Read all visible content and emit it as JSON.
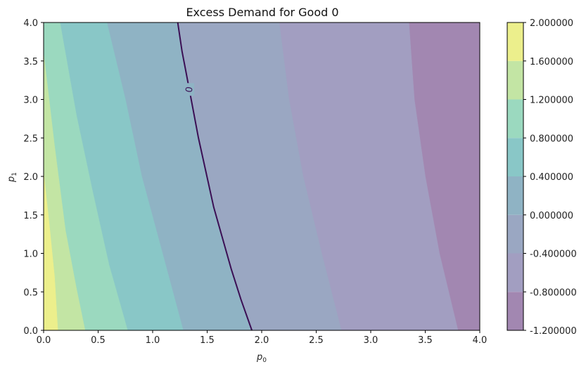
{
  "chart_data": {
    "type": "contour",
    "title": "Excess Demand for Good 0",
    "xlabel": {
      "base": "p",
      "sub": "0"
    },
    "ylabel": {
      "base": "p",
      "sub": "1"
    },
    "xlim": [
      0.0,
      4.0
    ],
    "ylim": [
      0.0,
      4.0
    ],
    "xticks": [
      "0.0",
      "0.5",
      "1.0",
      "1.5",
      "2.0",
      "2.5",
      "3.0",
      "3.5",
      "4.0"
    ],
    "yticks": [
      "0.0",
      "0.5",
      "1.0",
      "1.5",
      "2.0",
      "2.5",
      "3.0",
      "3.5",
      "4.0"
    ],
    "colorbar": {
      "levels": [
        -1.2,
        -0.8,
        -0.4,
        0.0,
        0.4,
        0.8,
        1.2,
        1.6,
        2.0
      ],
      "tick_labels": [
        "-1.200000",
        "-0.800000",
        "-0.400000",
        "0.000000",
        "0.400000",
        "0.800000",
        "1.200000",
        "1.600000",
        "2.000000"
      ],
      "colors": [
        "#a287b1",
        "#a29ec1",
        "#9aa7c2",
        "#8fb3c4",
        "#89c7c7",
        "#9bd9bf",
        "#c3e5a4",
        "#ecef8c"
      ]
    },
    "contour_boundaries": [
      {
        "level": 1.6,
        "points": [
          [
            0.0,
            2.05
          ],
          [
            0.05,
            1.4
          ],
          [
            0.1,
            0.7
          ],
          [
            0.13,
            0.0
          ]
        ]
      },
      {
        "level": 1.2,
        "points": [
          [
            0.0,
            3.6
          ],
          [
            0.1,
            2.4
          ],
          [
            0.2,
            1.3
          ],
          [
            0.3,
            0.55
          ],
          [
            0.38,
            0.0
          ]
        ]
      },
      {
        "level": 0.8,
        "points": [
          [
            0.15,
            4.0
          ],
          [
            0.3,
            2.8
          ],
          [
            0.45,
            1.8
          ],
          [
            0.6,
            0.85
          ],
          [
            0.77,
            0.0
          ]
        ]
      },
      {
        "level": 0.4,
        "points": [
          [
            0.58,
            4.0
          ],
          [
            0.75,
            3.0
          ],
          [
            0.9,
            2.0
          ],
          [
            1.1,
            0.95
          ],
          [
            1.28,
            0.0
          ]
        ]
      },
      {
        "level": 0.0,
        "points": [
          [
            1.23,
            4.0
          ],
          [
            1.3,
            3.4
          ],
          [
            1.42,
            2.5
          ],
          [
            1.56,
            1.6
          ],
          [
            1.72,
            0.8
          ],
          [
            1.91,
            0.0
          ]
        ]
      },
      {
        "level": -0.4,
        "points": [
          [
            2.16,
            4.0
          ],
          [
            2.25,
            3.0
          ],
          [
            2.38,
            2.0
          ],
          [
            2.55,
            1.0
          ],
          [
            2.73,
            0.0
          ]
        ]
      },
      {
        "level": -0.8,
        "points": [
          [
            3.35,
            4.0
          ],
          [
            3.4,
            3.0
          ],
          [
            3.5,
            2.0
          ],
          [
            3.63,
            1.0
          ],
          [
            3.8,
            0.0
          ]
        ]
      }
    ],
    "zero_line": {
      "label": "0",
      "label_at": [
        1.33,
        3.13
      ],
      "points": [
        [
          1.23,
          4.0
        ],
        [
          1.27,
          3.62
        ],
        [
          1.3,
          3.4
        ],
        [
          1.36,
          2.95
        ],
        [
          1.42,
          2.5
        ],
        [
          1.49,
          2.05
        ],
        [
          1.56,
          1.6
        ],
        [
          1.64,
          1.2
        ],
        [
          1.72,
          0.8
        ],
        [
          1.81,
          0.4
        ],
        [
          1.91,
          0.0
        ]
      ]
    }
  }
}
